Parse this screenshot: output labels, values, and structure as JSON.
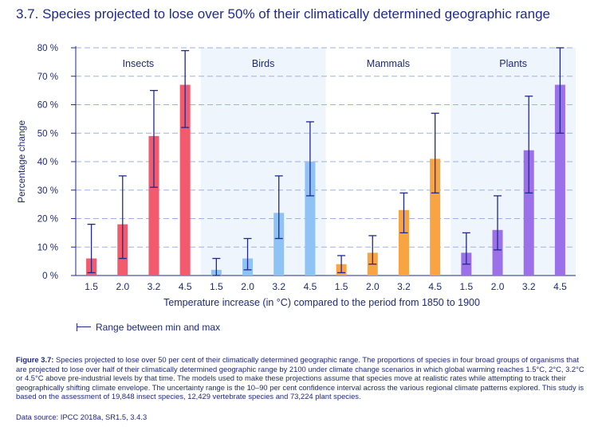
{
  "title": "3.7.  Species projected to lose over 50% of their climatically determined geographic range",
  "legend": {
    "label": "Range between min and max"
  },
  "caption": {
    "label": "Figure 3.7:",
    "text": " Species projected to lose over 50 per cent of their climatically determined geographic range. The proportions of species in four broad groups of organisms that are projected to lose over half of their climatically determined geographic range by 2100 under climate change scenarios in which global warming reaches 1.5°C, 2°C, 3.2°C or 4.5°C above pre-industrial levels by that time. The models used to make these projections assume that species move at realistic rates while attempting to track their geographically shifting climate envelope. The uncertainty range is the 10–90 per cent confidence interval across the various regional climate patterns explored. This study is based on the assessment of 19,848 insect species, 12,429 vertebrate species and 73,224 plant species."
  },
  "source": "Data source: IPCC 2018a, SR1.5, 3.4.3",
  "chart_data": {
    "type": "bar",
    "xlabel": "Temperature increase (in °C) compared to the period from 1850 to 1900",
    "ylabel": "Percentage change",
    "ylim": [
      0,
      80
    ],
    "yticks": [
      0,
      10,
      20,
      30,
      40,
      50,
      60,
      70,
      80
    ],
    "ytick_labels": [
      "0 %",
      "10 %",
      "20 %",
      "30 %",
      "40 %",
      "50 %",
      "60 %",
      "70 %",
      "80 %"
    ],
    "categories": [
      "1.5",
      "2.0",
      "3.2",
      "4.5"
    ],
    "grid": true,
    "groups": [
      {
        "name": "Insects",
        "color": "#f25b6e",
        "shaded": false,
        "values": [
          6,
          18,
          49,
          67
        ],
        "min": [
          1,
          6,
          31,
          52
        ],
        "max": [
          18,
          35,
          65,
          79
        ]
      },
      {
        "name": "Birds",
        "color": "#8fc2f5",
        "shaded": true,
        "values": [
          2,
          6,
          22,
          40
        ],
        "min": [
          0,
          2,
          13,
          28
        ],
        "max": [
          6,
          13,
          35,
          54
        ]
      },
      {
        "name": "Mammals",
        "color": "#f9a443",
        "shaded": false,
        "values": [
          4,
          8,
          23,
          41
        ],
        "min": [
          1,
          4,
          15,
          29
        ],
        "max": [
          7,
          14,
          29,
          57
        ]
      },
      {
        "name": "Plants",
        "color": "#9b70e8",
        "shaded": true,
        "values": [
          8,
          16,
          44,
          67
        ],
        "min": [
          4,
          9,
          29,
          50
        ],
        "max": [
          15,
          28,
          63,
          80
        ]
      }
    ]
  }
}
